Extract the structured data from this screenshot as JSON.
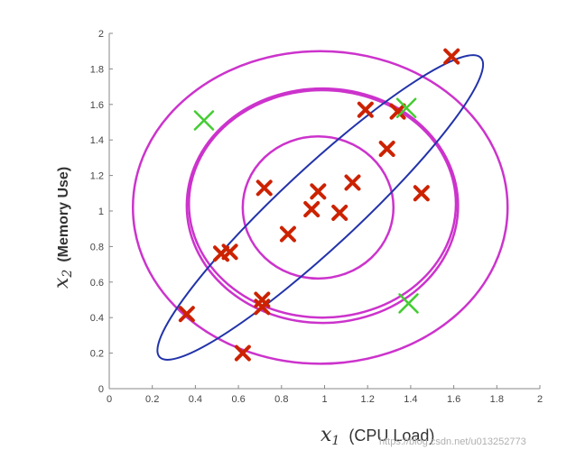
{
  "chart_data": {
    "type": "scatter",
    "title": "",
    "xlabel": {
      "variable": "x",
      "subscript": "1",
      "text": "(CPU Load)"
    },
    "ylabel": {
      "variable": "x",
      "subscript": "2",
      "text": "(Memory Use)"
    },
    "xlim": [
      0,
      2
    ],
    "ylim": [
      0,
      2
    ],
    "x_ticks": [
      "0",
      "0.2",
      "0.4",
      "0.6",
      "0.8",
      "1",
      "1.2",
      "1.4",
      "1.6",
      "1.8",
      "2"
    ],
    "y_ticks": [
      "0",
      "0.2",
      "0.4",
      "0.6",
      "0.8",
      "1",
      "1.2",
      "1.4",
      "1.6",
      "1.8",
      "2"
    ],
    "grid": false,
    "colors": {
      "red_marker": "#cc2200",
      "green_marker": "#44cc33",
      "contour": "#cc33cc",
      "ellipse": "#2233aa",
      "axis": "#888888"
    },
    "series": [
      {
        "marker": "x",
        "color": "red",
        "points": [
          [
            0.36,
            0.42
          ],
          [
            0.52,
            0.76
          ],
          [
            0.56,
            0.77
          ],
          [
            0.62,
            0.2
          ],
          [
            0.71,
            0.5
          ],
          [
            0.71,
            0.46
          ],
          [
            0.72,
            1.13
          ],
          [
            0.83,
            0.87
          ],
          [
            0.94,
            1.01
          ],
          [
            0.97,
            1.11
          ],
          [
            1.07,
            0.99
          ],
          [
            1.13,
            1.16
          ],
          [
            1.19,
            1.57
          ],
          [
            1.29,
            1.35
          ],
          [
            1.34,
            1.56
          ],
          [
            1.45,
            1.1
          ],
          [
            1.59,
            1.87
          ]
        ]
      },
      {
        "marker": "x",
        "color": "green",
        "points": [
          [
            0.44,
            1.51
          ],
          [
            1.38,
            1.58
          ],
          [
            1.39,
            0.48
          ]
        ]
      }
    ],
    "contours": [
      {
        "kind": "circle",
        "cx": 0.97,
        "cy": 1.02,
        "rx": 0.35,
        "ry": 0.4,
        "color": "magenta"
      },
      {
        "kind": "circle",
        "cx": 0.99,
        "cy": 1.03,
        "rx": 0.63,
        "ry": 0.66,
        "color": "magenta"
      },
      {
        "kind": "circle",
        "cx": 0.99,
        "cy": 1.04,
        "rx": 0.62,
        "ry": 0.64,
        "color": "magenta"
      },
      {
        "kind": "circle",
        "cx": 0.98,
        "cy": 1.02,
        "rx": 0.87,
        "ry": 0.88,
        "color": "magenta"
      },
      {
        "kind": "ellipse",
        "cx": 0.98,
        "cy": 1.02,
        "rx": 1.02,
        "ry": 0.22,
        "rotation_deg": 43,
        "color": "blue"
      }
    ]
  },
  "watermark": "https://blog.csdn.net/u013252773"
}
